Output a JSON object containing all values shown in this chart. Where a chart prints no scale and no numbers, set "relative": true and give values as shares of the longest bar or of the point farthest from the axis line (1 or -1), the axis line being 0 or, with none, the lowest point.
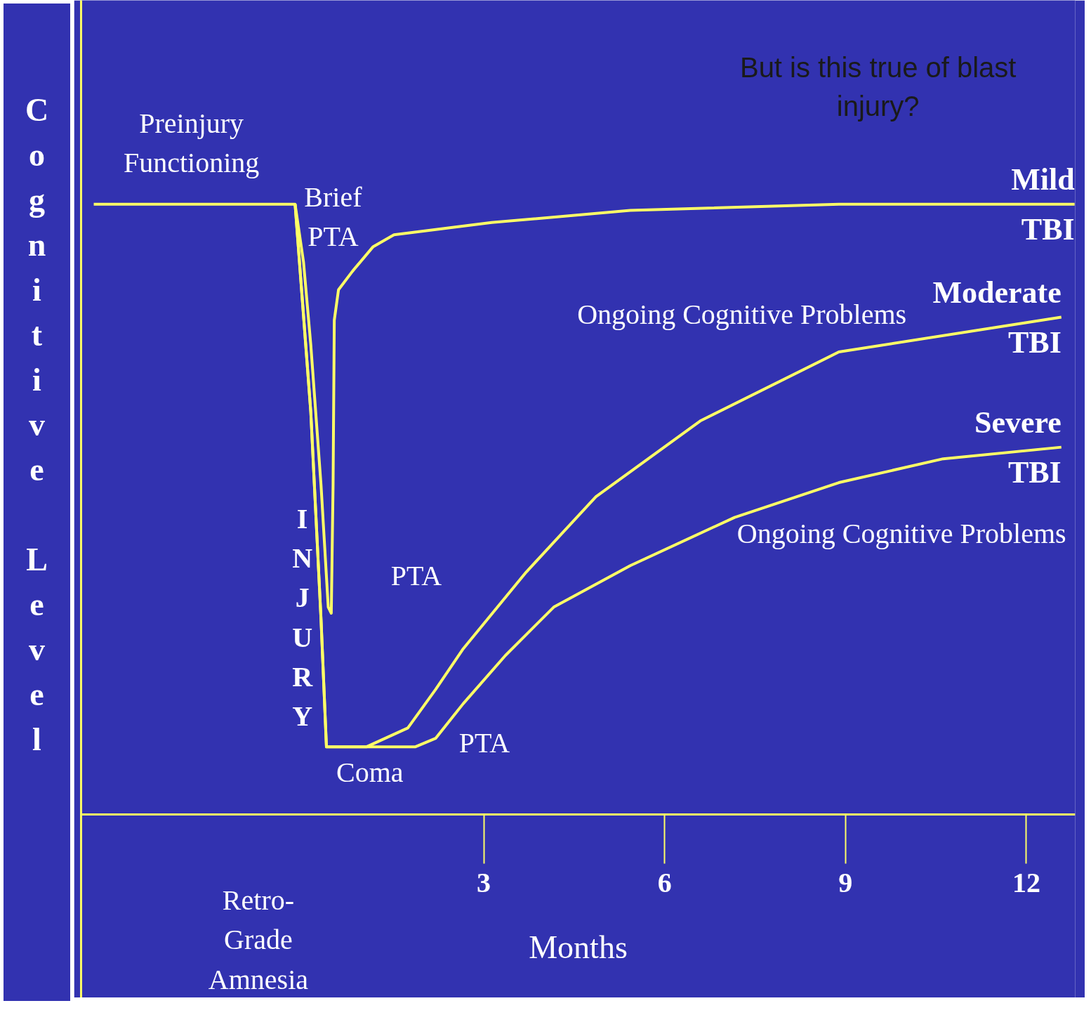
{
  "chart_data": {
    "type": "line",
    "relative": true,
    "xlabel": "Months",
    "ylabel": "Cognitive Level",
    "xlim": [
      -3.68,
      12.81
    ],
    "xticks": [
      3,
      6,
      9,
      12
    ],
    "grid": false,
    "marker": "none",
    "line_style": "solid",
    "series": [
      {
        "name": "Mild TBI",
        "color": "#ffff66",
        "x": [
          -3.47,
          -0.13,
          0.01,
          0.13,
          0.3,
          0.42,
          0.47,
          0.5,
          0.52,
          0.59,
          0.82,
          1.16,
          1.51,
          3.13,
          5.43,
          8.89,
          12.8
        ],
        "values": [
          1.0,
          1.0,
          0.905,
          0.77,
          0.54,
          0.34,
          0.33,
          0.54,
          0.81,
          0.86,
          0.89,
          0.93,
          0.95,
          0.97,
          0.99,
          1.0,
          1.0
        ]
      },
      {
        "name": "Moderate TBI",
        "color": "#ffff66",
        "x": [
          -0.13,
          0.13,
          0.3,
          0.39,
          1.05,
          1.74,
          2.2,
          2.66,
          3.7,
          4.86,
          6.59,
          8.89,
          12.58
        ],
        "values": [
          1.0,
          0.66,
          0.32,
          0.111,
          0.111,
          0.142,
          0.205,
          0.272,
          0.397,
          0.521,
          0.645,
          0.758,
          0.815
        ]
      },
      {
        "name": "Severe TBI",
        "color": "#ffff66",
        "x": [
          -0.13,
          0.13,
          0.3,
          0.39,
          1.86,
          2.2,
          2.66,
          3.36,
          4.16,
          5.43,
          7.16,
          8.89,
          10.62,
          12.58
        ],
        "values": [
          1.0,
          0.66,
          0.32,
          0.111,
          0.111,
          0.125,
          0.182,
          0.261,
          0.34,
          0.408,
          0.487,
          0.544,
          0.583,
          0.602
        ]
      }
    ],
    "annotations": [
      "Preinjury\nFunctioning",
      "Brief\nPTA",
      "Ongoing Cognitive Problems",
      "Ongoing Cognitive Problems",
      "I\nN\nJ\nU\nR\nY",
      "PTA",
      "PTA",
      "Coma",
      "Retro-\nGrade\nAmnesia",
      "But is this true of blast\ninjury?"
    ]
  }
}
